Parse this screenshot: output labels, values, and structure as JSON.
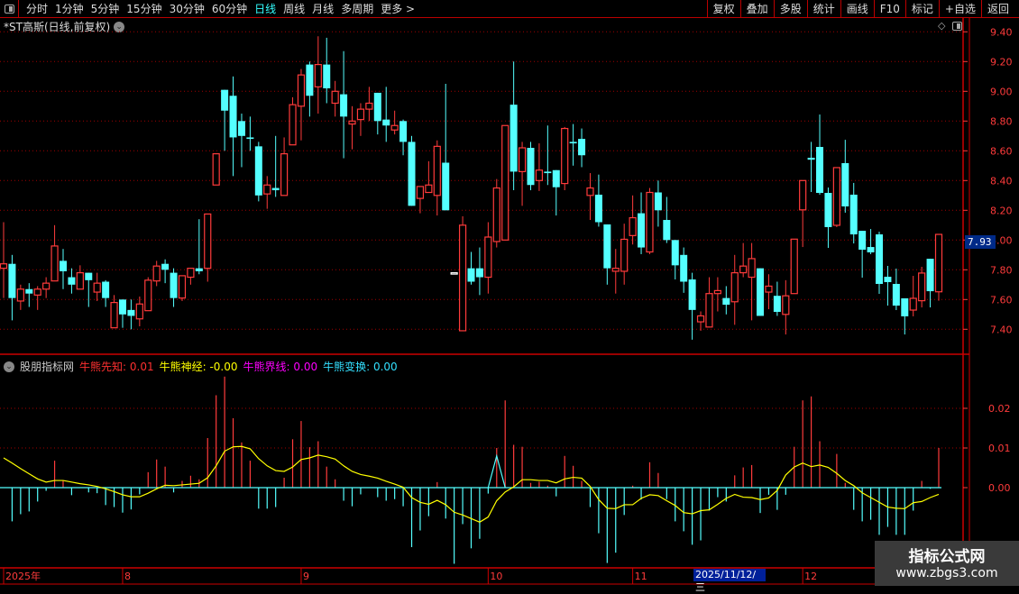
{
  "toolbar": {
    "periods": [
      "分时",
      "1分钟",
      "5分钟",
      "15分钟",
      "30分钟",
      "60分钟",
      "日线",
      "周线",
      "月线",
      "多周期",
      "更多 >"
    ],
    "active_period": "日线",
    "buttons": [
      "复权",
      "叠加",
      "多股",
      "统计",
      "画线",
      "F10",
      "标记",
      "+自选",
      "返回"
    ]
  },
  "stock_title": "*ST高斯(日线,前复权)",
  "current_price": "7.93",
  "indicator": {
    "name": "股朋指标网",
    "items": [
      {
        "label": "牛熊先知: 0.01",
        "color": "#ff3030"
      },
      {
        "label": "牛熊神经: -0.00",
        "color": "#ffff00"
      },
      {
        "label": "牛熊界线: 0.00",
        "color": "#ff00ff"
      },
      {
        "label": "牛熊变换: 0.00",
        "color": "#33e0ff"
      }
    ]
  },
  "watermark": {
    "name": "指标公式网",
    "url": "www.zbgs3.com"
  },
  "colors": {
    "up": "#ff3b3b",
    "down": "#54ffff",
    "grid": "#a00000",
    "axis": "#ff3b3b",
    "line": "#ffff00"
  },
  "chart_data": [
    {
      "type": "candlestick",
      "price_axis": {
        "ticks": [
          "9.40",
          "9.20",
          "9.00",
          "8.80",
          "8.60",
          "8.40",
          "8.20",
          "8.00",
          "7.80",
          "7.60",
          "7.40"
        ],
        "range": [
          7.3,
          9.45
        ]
      },
      "x_labels": [
        {
          "index": 0,
          "label": "2025年"
        },
        {
          "index": 14,
          "label": "8"
        },
        {
          "index": 35,
          "label": "9"
        },
        {
          "index": 57,
          "label": "10"
        },
        {
          "index": 74,
          "label": "11"
        },
        {
          "index": 94,
          "label": "12"
        }
      ],
      "x_highlight": {
        "index": 81,
        "label": "2025/11/12/三"
      },
      "ohlc": [
        [
          7.81,
          8.12,
          7.61,
          7.84
        ],
        [
          7.84,
          7.9,
          7.46,
          7.61
        ],
        [
          7.59,
          7.7,
          7.53,
          7.67
        ],
        [
          7.67,
          7.71,
          7.55,
          7.64
        ],
        [
          7.63,
          7.69,
          7.53,
          7.67
        ],
        [
          7.67,
          7.75,
          7.61,
          7.71
        ],
        [
          7.725,
          8.1,
          7.725,
          7.96
        ],
        [
          7.86,
          7.94,
          7.67,
          7.79
        ],
        [
          7.75,
          7.81,
          7.64,
          7.7
        ],
        [
          7.67,
          7.83,
          7.67,
          7.78
        ],
        [
          7.78,
          7.78,
          7.55,
          7.73
        ],
        [
          7.65,
          7.78,
          7.59,
          7.71
        ],
        [
          7.72,
          7.73,
          7.55,
          7.61
        ],
        [
          7.41,
          7.63,
          7.41,
          7.58
        ],
        [
          7.6,
          7.6,
          7.41,
          7.5
        ],
        [
          7.53,
          7.6,
          7.4,
          7.49
        ],
        [
          7.47,
          7.62,
          7.42,
          7.57
        ],
        [
          7.525,
          7.75,
          7.525,
          7.73
        ],
        [
          7.725,
          7.86,
          7.69,
          7.825
        ],
        [
          7.84,
          7.87,
          7.71,
          7.8
        ],
        [
          7.78,
          7.81,
          7.55,
          7.61
        ],
        [
          7.61,
          7.76,
          7.59,
          7.76
        ],
        [
          7.75,
          7.81,
          7.7,
          7.81
        ],
        [
          7.81,
          8.14,
          7.77,
          7.79
        ],
        [
          7.81,
          8.175,
          7.72,
          8.175
        ],
        [
          8.37,
          8.58,
          8.37,
          8.58
        ],
        [
          9.01,
          9.01,
          8.6,
          8.87
        ],
        [
          8.97,
          9.1,
          8.43,
          8.69
        ],
        [
          8.8,
          8.85,
          8.49,
          8.7
        ],
        [
          8.69,
          8.83,
          8.6,
          8.68
        ],
        [
          8.63,
          8.66,
          8.26,
          8.3
        ],
        [
          8.31,
          8.43,
          8.21,
          8.37
        ],
        [
          8.35,
          8.7,
          8.29,
          8.335
        ],
        [
          8.3,
          8.69,
          8.3,
          8.58
        ],
        [
          8.64,
          8.96,
          8.64,
          8.91
        ],
        [
          8.9,
          9.15,
          8.67,
          9.11
        ],
        [
          9.18,
          9.2,
          8.83,
          8.97
        ],
        [
          9.03,
          9.37,
          8.85,
          9.18
        ],
        [
          9.18,
          9.36,
          8.92,
          9.02
        ],
        [
          8.92,
          9.07,
          8.83,
          9.0
        ],
        [
          8.98,
          9.27,
          8.55,
          8.83
        ],
        [
          8.78,
          8.9,
          8.61,
          8.8
        ],
        [
          8.81,
          8.92,
          8.7,
          8.88
        ],
        [
          8.88,
          9.03,
          8.8,
          8.92
        ],
        [
          8.99,
          8.99,
          8.71,
          8.8
        ],
        [
          8.81,
          9.03,
          8.66,
          8.77
        ],
        [
          8.74,
          8.87,
          8.71,
          8.77
        ],
        [
          8.8,
          8.81,
          8.57,
          8.66
        ],
        [
          8.66,
          8.7,
          8.23,
          8.23
        ],
        [
          8.28,
          8.36,
          8.18,
          8.36
        ],
        [
          8.32,
          8.53,
          8.32,
          8.37
        ],
        [
          8.3,
          8.67,
          8.165,
          8.63
        ],
        [
          8.52,
          9.05,
          8.2,
          8.2
        ],
        [
          7.78,
          7.78,
          7.78,
          7.78
        ],
        [
          7.39,
          8.16,
          7.39,
          8.1
        ],
        [
          7.81,
          7.92,
          7.7,
          7.72
        ],
        [
          7.81,
          7.95,
          7.63,
          7.75
        ],
        [
          7.75,
          8.12,
          7.64,
          8.02
        ],
        [
          7.99,
          8.41,
          7.95,
          8.35
        ],
        [
          8.0,
          8.77,
          8.0,
          8.77
        ],
        [
          8.91,
          9.2,
          8.335,
          8.46
        ],
        [
          8.46,
          8.66,
          8.23,
          8.62
        ],
        [
          8.62,
          8.66,
          8.335,
          8.37
        ],
        [
          8.4,
          8.65,
          8.33,
          8.47
        ],
        [
          8.46,
          8.77,
          8.37,
          8.45
        ],
        [
          8.47,
          8.47,
          8.165,
          8.355
        ],
        [
          8.38,
          8.76,
          8.335,
          8.75
        ],
        [
          8.66,
          8.78,
          8.5,
          8.65
        ],
        [
          8.68,
          8.75,
          8.49,
          8.57
        ],
        [
          8.3,
          8.45,
          8.135,
          8.35
        ],
        [
          8.305,
          8.44,
          8.09,
          8.12
        ],
        [
          8.105,
          8.105,
          7.7,
          7.81
        ],
        [
          7.79,
          7.94,
          7.64,
          7.81
        ],
        [
          7.79,
          8.11,
          7.7,
          8.005
        ],
        [
          8.03,
          8.3,
          7.97,
          8.15
        ],
        [
          8.18,
          8.32,
          7.905,
          7.95
        ],
        [
          7.92,
          8.35,
          7.905,
          8.32
        ],
        [
          8.32,
          8.4,
          8.09,
          8.2
        ],
        [
          8.135,
          8.29,
          7.98,
          8.0
        ],
        [
          8.0,
          8.0,
          7.735,
          7.83
        ],
        [
          7.9,
          7.95,
          7.645,
          7.72
        ],
        [
          7.735,
          7.78,
          7.33,
          7.53
        ],
        [
          7.45,
          7.52,
          7.39,
          7.49
        ],
        [
          7.415,
          7.75,
          7.415,
          7.64
        ],
        [
          7.64,
          7.75,
          7.52,
          7.66
        ],
        [
          7.61,
          7.69,
          7.5,
          7.565
        ],
        [
          7.585,
          7.9,
          7.43,
          7.78
        ],
        [
          7.78,
          7.98,
          7.75,
          7.825
        ],
        [
          7.75,
          7.98,
          7.46,
          7.875
        ],
        [
          7.81,
          7.81,
          7.49,
          7.49
        ],
        [
          7.65,
          7.77,
          7.535,
          7.69
        ],
        [
          7.625,
          7.72,
          7.49,
          7.517
        ],
        [
          7.5,
          7.73,
          7.365,
          7.625
        ],
        [
          7.64,
          8.006,
          7.64,
          8.006
        ],
        [
          8.203,
          8.4,
          7.953,
          8.4
        ],
        [
          8.553,
          8.66,
          8.323,
          8.54
        ],
        [
          8.626,
          8.844,
          8.305,
          8.317
        ],
        [
          8.317,
          8.353,
          7.947,
          8.087
        ],
        [
          8.099,
          8.487,
          8.087,
          8.487
        ],
        [
          8.517,
          8.674,
          8.184,
          8.226
        ],
        [
          8.305,
          8.384,
          7.977,
          8.038
        ],
        [
          8.062,
          8.062,
          7.747,
          7.935
        ],
        [
          7.953,
          8.074,
          7.905,
          7.917
        ],
        [
          8.038,
          8.056,
          7.638,
          7.705
        ],
        [
          7.753,
          7.826,
          7.559,
          7.717
        ],
        [
          7.705,
          7.808,
          7.529,
          7.559
        ],
        [
          7.608,
          7.608,
          7.365,
          7.487
        ],
        [
          7.529,
          7.759,
          7.487,
          7.608
        ],
        [
          7.592,
          7.82,
          7.547,
          7.778
        ],
        [
          7.874,
          7.874,
          7.547,
          7.656
        ],
        [
          7.652,
          8.038,
          7.592,
          8.038
        ]
      ]
    },
    {
      "type": "bar+line",
      "y_axis": {
        "ticks": [
          "0.02",
          "0.01",
          "0.00"
        ],
        "range": [
          -0.021,
          0.03
        ]
      },
      "bars": [
        0,
        -0.0085,
        -0.0067,
        -0.006,
        -0.0035,
        -0.0008,
        0.0068,
        0.0017,
        -0.0019,
        0,
        -0.0012,
        -0.0014,
        -0.0044,
        -0.0049,
        -0.0063,
        -0.0055,
        -0.0017,
        0.0039,
        0.0071,
        0.0053,
        -0.0012,
        0.0017,
        0.003,
        0.0021,
        0.0125,
        0.0233,
        0.028,
        0.0175,
        0.0114,
        0.0068,
        -0.0053,
        -0.0053,
        -0.0049,
        0.0025,
        0.0122,
        0.0168,
        0.0102,
        0.0117,
        0.0053,
        0.0021,
        -0.0033,
        -0.0047,
        -0.0017,
        0,
        -0.0024,
        -0.0033,
        -0.0029,
        -0.0047,
        -0.015,
        -0.0108,
        -0.0072,
        0.0014,
        -0.0078,
        -0.0192,
        -0.0092,
        -0.0153,
        -0.0129,
        -0.0015,
        0.01,
        0.022,
        0.0108,
        0.0103,
        0.0012,
        0.0015,
        0.0005,
        -0.0022,
        0.008,
        0.0055,
        0.0017,
        -0.0049,
        -0.0115,
        -0.019,
        -0.0164,
        -0.0069,
        0.0005,
        -0.003,
        0.0064,
        0.0037,
        -0.0029,
        -0.0085,
        -0.011,
        -0.0144,
        -0.0133,
        -0.0058,
        -0.0024,
        -0.0035,
        0.0031,
        0.0051,
        0.0057,
        -0.0064,
        -0.0018,
        -0.0056,
        -0.0018,
        0.0103,
        0.022,
        0.023,
        0.0117,
        0,
        0.0085,
        0.0012,
        -0.0056,
        -0.0085,
        -0.0081,
        -0.0119,
        -0.0099,
        -0.0119,
        -0.0119,
        -0.0058,
        0.0017,
        -0.0003,
        0.01
      ],
      "line": [
        0.0075,
        0.0062,
        0.0048,
        0.0035,
        0.0022,
        0.0014,
        0.0018,
        0.0018,
        0.0014,
        0.001,
        0.0007,
        0.0003,
        -0.0003,
        -0.001,
        -0.0018,
        -0.0023,
        -0.0023,
        -0.0014,
        -0.0003,
        0.0006,
        0.0005,
        0.0007,
        0.0009,
        0.0011,
        0.0025,
        0.0055,
        0.0092,
        0.0103,
        0.0104,
        0.0098,
        0.0073,
        0.0055,
        0.0043,
        0.0041,
        0.0052,
        0.0071,
        0.0075,
        0.0082,
        0.0078,
        0.0072,
        0.0055,
        0.0041,
        0.0033,
        0.0029,
        0.0024,
        0.0016,
        0.0009,
        0.0001,
        -0.0025,
        -0.0037,
        -0.0042,
        -0.0032,
        -0.0043,
        -0.0062,
        -0.0069,
        -0.0078,
        -0.0087,
        -0.0074,
        -0.0033,
        -0.0011,
        0.0002,
        0.002,
        0.002,
        0.0018,
        0.0018,
        0.0012,
        0.0022,
        0.0026,
        0.0024,
        0.0003,
        -0.003,
        -0.0052,
        -0.0053,
        -0.0043,
        -0.0043,
        -0.0027,
        -0.0018,
        -0.002,
        -0.0033,
        -0.0045,
        -0.0063,
        -0.0066,
        -0.0058,
        -0.0056,
        -0.0042,
        -0.0027,
        -0.0017,
        -0.0024,
        -0.0025,
        -0.003,
        -0.0026,
        -0.0007,
        0.0032,
        0.0052,
        0.0062,
        0.0053,
        0.0057,
        0.0051,
        0.0036,
        0.0018,
        0.0005,
        -0.0013,
        -0.0025,
        -0.0037,
        -0.0049,
        -0.0052,
        -0.0053,
        -0.0038,
        -0.0035,
        -0.0025,
        -0.0017
      ],
      "change_spike": {
        "index": 58,
        "value": 0.008
      }
    }
  ]
}
